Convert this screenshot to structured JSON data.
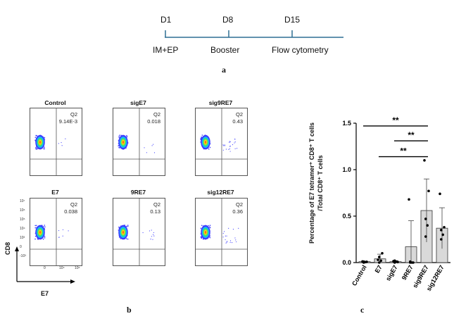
{
  "panel_a": {
    "days": [
      "D1",
      "D8",
      "D15"
    ],
    "steps": [
      "IM+EP",
      "Booster",
      "Flow cytometry"
    ],
    "label": "a",
    "accent": "#2f6f93"
  },
  "panel_b": {
    "label": "b",
    "plots": [
      {
        "title": "Control",
        "q_name": "Q2",
        "q_value": "9.14E-3"
      },
      {
        "title": "sigE7",
        "q_name": "Q2",
        "q_value": "0.018"
      },
      {
        "title": "sig9RE7",
        "q_name": "Q2",
        "q_value": "0.43"
      },
      {
        "title": "E7",
        "q_name": "Q2",
        "q_value": "0.038"
      },
      {
        "title": "9RE7",
        "q_name": "Q2",
        "q_value": "0.13"
      },
      {
        "title": "sig12RE7",
        "q_name": "Q2",
        "q_value": "0.36"
      }
    ],
    "y_axis": "CD8",
    "x_axis": "E7",
    "y_ticks": [
      "10⁷",
      "10⁶",
      "10⁵",
      "10⁴",
      "10³",
      "0",
      "-10³"
    ],
    "x_ticks": [
      "0",
      "10⁴",
      "10⁶"
    ]
  },
  "panel_c": {
    "label": "c",
    "chart_data": {
      "type": "bar",
      "categories": [
        "Control",
        "E7",
        "sigE7",
        "9RE7",
        "sig9RE7",
        "sig12RE7"
      ],
      "values": [
        0.01,
        0.04,
        0.01,
        0.17,
        0.56,
        0.37
      ],
      "errors": [
        0.005,
        0.05,
        0.01,
        0.28,
        0.34,
        0.22
      ],
      "points": [
        [
          0.0,
          0.005,
          0.01,
          0.008,
          0.012
        ],
        [
          0.0,
          0.02,
          0.06,
          0.1,
          0.03
        ],
        [
          0.0,
          0.01,
          0.02,
          0.005,
          0.015
        ],
        [
          0.0,
          0.0,
          0.01,
          0.0,
          0.68
        ],
        [
          0.28,
          0.4,
          0.47,
          0.77,
          1.1
        ],
        [
          0.25,
          0.3,
          0.35,
          0.38,
          0.74
        ]
      ],
      "ylabel_line1": "Percentage of E7 tetramer⁺ CD8⁺ T cells",
      "ylabel_line2": "/Total CD8⁺ T cells",
      "ylim": [
        0,
        1.5
      ],
      "yticks": [
        "0.0",
        "0.5",
        "1.0",
        "1.5"
      ],
      "significance": [
        {
          "from": "E7",
          "to": "sig9RE7",
          "label": "**"
        },
        {
          "from": "sigE7",
          "to": "sig9RE7",
          "label": "**"
        },
        {
          "from": "Control",
          "to": "sig9RE7",
          "label": "**"
        }
      ],
      "bar_color": "#d9d9d9"
    }
  }
}
